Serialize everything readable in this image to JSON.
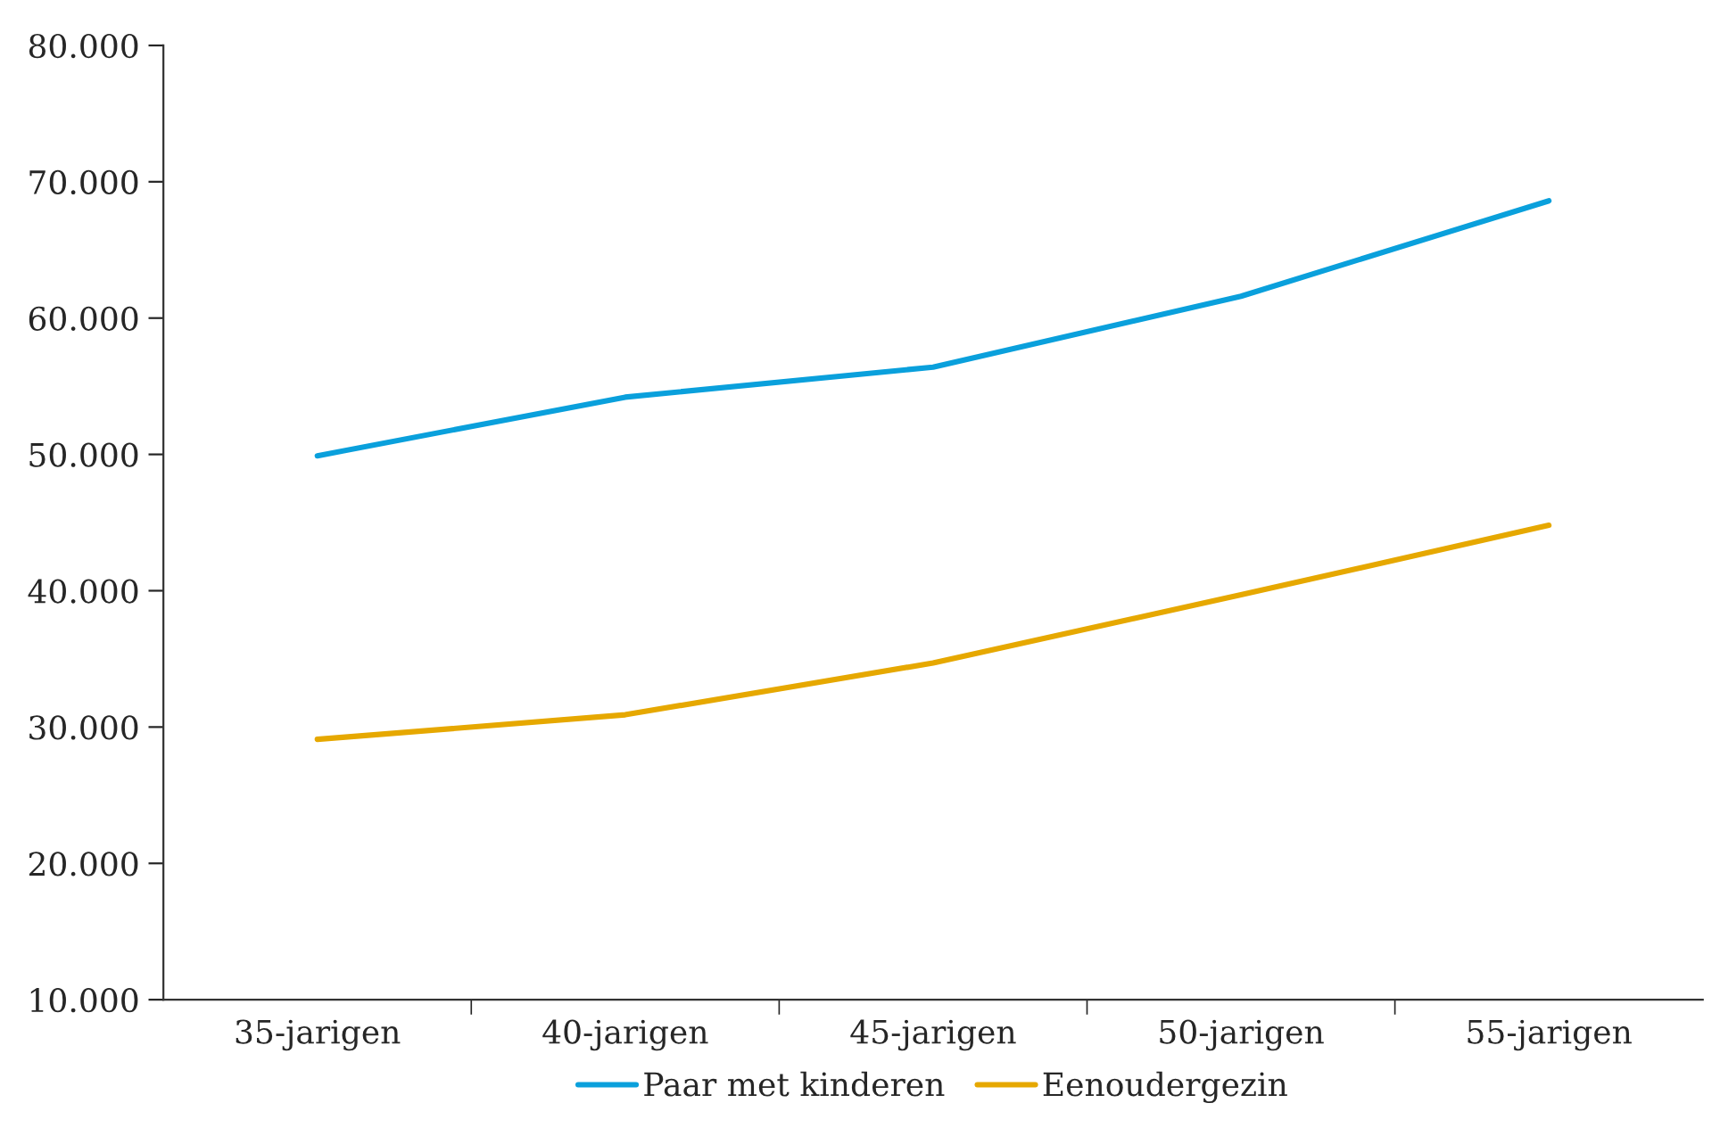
{
  "chart_data": {
    "type": "line",
    "categories": [
      "35-jarigen",
      "40-jarigen",
      "45-jarigen",
      "50-jarigen",
      "55-jarigen"
    ],
    "series": [
      {
        "name": "Paar met kinderen",
        "color": "#0aa0dc",
        "values": [
          49900,
          54200,
          56400,
          61600,
          68600
        ]
      },
      {
        "name": "Eenoudergezin",
        "color": "#e6a800",
        "values": [
          29100,
          30900,
          34700,
          39700,
          44800
        ]
      }
    ],
    "ylim": [
      10000,
      80000
    ],
    "yticks": [
      {
        "value": 10000,
        "label": "10.000"
      },
      {
        "value": 20000,
        "label": "20.000"
      },
      {
        "value": 30000,
        "label": "30.000"
      },
      {
        "value": 40000,
        "label": "40.000"
      },
      {
        "value": 50000,
        "label": "50.000"
      },
      {
        "value": 60000,
        "label": "60.000"
      },
      {
        "value": 70000,
        "label": "70.000"
      },
      {
        "value": 80000,
        "label": "80.000"
      }
    ],
    "grid": false,
    "legend": "bottom",
    "marker": "none",
    "line_style": "solid"
  }
}
